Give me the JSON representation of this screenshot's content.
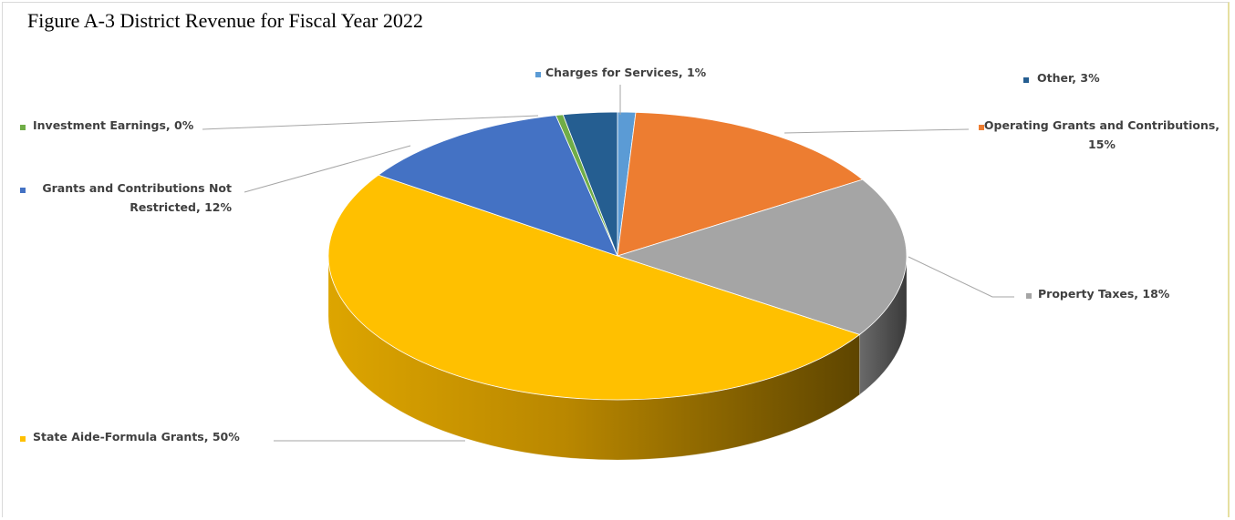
{
  "title": "Figure A-3 District Revenue for Fiscal Year 2022",
  "chart_data": {
    "type": "pie",
    "title": "Figure A-3 District Revenue for Fiscal Year 2022",
    "slices": [
      {
        "label": "Charges for Services",
        "value": 1,
        "label_text": "Charges for Services, 1%",
        "color": "#5b9bd5"
      },
      {
        "label": "Operating Grants and Contributions",
        "value": 15,
        "label_text": [
          "Operating Grants and Contributions,",
          "15%"
        ],
        "color": "#ed7d31"
      },
      {
        "label": "Property Taxes",
        "value": 18,
        "label_text": "Property Taxes, 18%",
        "color": "#a5a5a5"
      },
      {
        "label": "State Aide-Formula Grants",
        "value": 50,
        "label_text": "State Aide-Formula Grants, 50%",
        "color": "#ffc000"
      },
      {
        "label": "Grants and Contributions Not Restricted",
        "value": 12,
        "label_text": [
          "Grants and Contributions Not",
          "Restricted, 12%"
        ],
        "color": "#4472c4"
      },
      {
        "label": "Investment Earnings",
        "value": 0,
        "label_text": "Investment Earnings, 0%",
        "color": "#70ad47"
      },
      {
        "label": "Other",
        "value": 3,
        "label_text": "Other, 3%",
        "color": "#255e91"
      }
    ]
  }
}
